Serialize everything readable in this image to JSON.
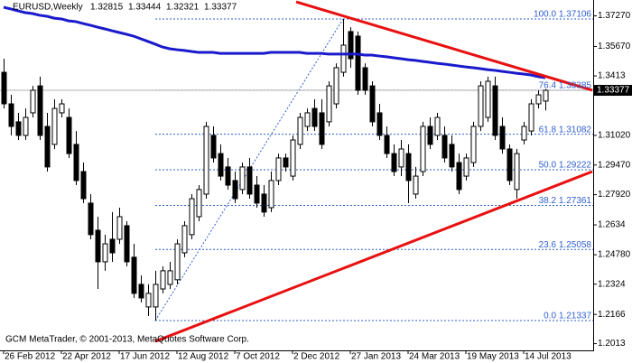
{
  "header": {
    "symbol": "EURUSD,Weekly"
  },
  "footer": "GCM MetaTrader, © 2001-2013, MetaQuotes Software Corp.",
  "chart_data": {
    "type": "candlestick",
    "categories": [
      "26 Feb 2012",
      null,
      null,
      null,
      null,
      null,
      null,
      null,
      "22 Apr 2012",
      null,
      null,
      null,
      null,
      null,
      null,
      null,
      "17 Jun 2012",
      null,
      null,
      null,
      null,
      null,
      null,
      null,
      "12 Aug 2012",
      null,
      null,
      null,
      null,
      null,
      null,
      null,
      "7 Oct 2012",
      null,
      null,
      null,
      null,
      null,
      null,
      null,
      "2 Dec 2012",
      null,
      null,
      null,
      null,
      null,
      null,
      null,
      "27 Jan 2013",
      null,
      null,
      null,
      null,
      null,
      null,
      null,
      "24 Mar 2013",
      null,
      null,
      null,
      null,
      null,
      null,
      null,
      "19 May 2013",
      null,
      null,
      null,
      null,
      null,
      null,
      null,
      "14 Jul 2013",
      null,
      null,
      null
    ],
    "open": [
      1.3432,
      1.3267,
      1.3173,
      1.3102,
      1.322,
      1.3361,
      1.3149,
      1.3055,
      1.322,
      1.3196,
      1.3055,
      1.2913,
      1.2748,
      1.2606,
      1.2441,
      1.2559,
      1.2559,
      1.263,
      1.2465,
      1.2323,
      1.2205,
      1.2205,
      1.2299,
      1.2323,
      1.2347,
      1.2488,
      1.2583,
      1.2677,
      1.2795,
      1.3102,
      1.3007,
      1.2937,
      1.2866,
      1.2819,
      1.2937,
      1.2842,
      1.2795,
      1.2724,
      1.2866,
      1.2984,
      1.2889,
      1.3055,
      1.3149,
      1.3243,
      1.322,
      1.3173,
      1.3267,
      1.3432,
      1.3645,
      1.3621,
      1.3456,
      1.3361,
      1.322,
      1.3102,
      1.3007,
      1.2937,
      1.3007,
      1.2795,
      1.2913,
      1.3149,
      1.3102,
      1.3102,
      1.3055,
      1.296,
      1.2889,
      1.296,
      1.3149,
      1.3196,
      1.3361,
      1.3149,
      1.3031,
      1.2819,
      1.3078,
      1.3125,
      1.3267,
      1.32815
    ],
    "high": [
      1.3503,
      1.3314,
      1.322,
      1.3243,
      1.3361,
      1.3409,
      1.322,
      1.3291,
      1.3291,
      1.3243,
      1.3125,
      1.296,
      1.2795,
      1.2677,
      1.2583,
      1.2701,
      1.2724,
      1.2653,
      1.2535,
      1.237,
      1.2323,
      1.2394,
      1.2417,
      1.2441,
      1.2559,
      1.2653,
      1.2795,
      1.2842,
      1.3173,
      1.3149,
      1.3055,
      1.2984,
      1.2913,
      1.296,
      1.2984,
      1.2889,
      1.2842,
      1.2913,
      1.3007,
      1.3007,
      1.3102,
      1.322,
      1.3243,
      1.3291,
      1.3291,
      1.3385,
      1.3479,
      1.37106,
      1.3668,
      1.3645,
      1.3479,
      1.3385,
      1.3267,
      1.3149,
      1.3055,
      1.3078,
      1.3055,
      1.2937,
      1.3173,
      1.3196,
      1.322,
      1.3149,
      1.3102,
      1.3007,
      1.3007,
      1.3173,
      1.3385,
      1.3409,
      1.3409,
      1.3196,
      1.3055,
      1.3031,
      1.3173,
      1.3291,
      1.3338,
      1.33444
    ],
    "low": [
      1.3243,
      1.3102,
      1.3078,
      1.3078,
      1.3196,
      1.3078,
      1.2913,
      1.3031,
      1.3196,
      1.2984,
      1.2842,
      1.2748,
      1.2559,
      1.2299,
      1.2394,
      1.2441,
      1.2535,
      1.2417,
      1.2252,
      1.2229,
      1.2158,
      1.21337,
      1.2276,
      1.2299,
      1.2323,
      1.2465,
      1.2559,
      1.2653,
      1.2771,
      1.296,
      1.2866,
      1.2819,
      1.2748,
      1.2795,
      1.2771,
      1.2724,
      1.2677,
      1.2701,
      1.2842,
      1.2913,
      1.2866,
      1.3031,
      1.3125,
      1.3125,
      1.3031,
      1.3149,
      1.3243,
      1.3409,
      1.3456,
      1.3314,
      1.3314,
      1.3149,
      1.3078,
      1.2984,
      1.2889,
      1.2889,
      1.2748,
      1.2771,
      1.2889,
      1.3031,
      1.3078,
      1.296,
      1.2913,
      1.2795,
      1.2866,
      1.2937,
      1.3125,
      1.3173,
      1.3078,
      1.3007,
      1.2842,
      1.2771,
      1.3055,
      1.3102,
      1.3243,
      1.32321
    ],
    "close": [
      1.3267,
      1.3149,
      1.3102,
      1.3196,
      1.3338,
      1.3102,
      1.2937,
      1.3243,
      1.3267,
      1.3007,
      1.2866,
      1.2771,
      1.2583,
      1.2441,
      1.2535,
      1.2488,
      1.2677,
      1.2441,
      1.2276,
      1.2252,
      1.2276,
      1.2323,
      1.2394,
      1.2394,
      1.2535,
      1.263,
      1.2771,
      1.2819,
      1.3149,
      1.2984,
      1.2889,
      1.2842,
      1.2771,
      1.2937,
      1.2795,
      1.2748,
      1.2701,
      1.2866,
      1.2984,
      1.2937,
      1.3078,
      1.3196,
      1.322,
      1.3149,
      1.3055,
      1.3361,
      1.3456,
      1.3574,
      1.3503,
      1.3338,
      1.3338,
      1.3173,
      1.3102,
      1.3007,
      1.2913,
      1.3031,
      1.2866,
      1.2889,
      1.3149,
      1.3055,
      1.3196,
      1.2984,
      1.2937,
      1.2819,
      1.2984,
      1.3149,
      1.3361,
      1.3385,
      1.3102,
      1.3031,
      1.2866,
      1.3007,
      1.3149,
      1.3267,
      1.3314,
      1.33377
    ],
    "moving_average": {
      "color": "#1a1acc",
      "values": [
        1.3772,
        1.3763,
        1.3753,
        1.3744,
        1.3739,
        1.373,
        1.3725,
        1.3715,
        1.3711,
        1.3701,
        1.3697,
        1.3687,
        1.3678,
        1.3668,
        1.3659,
        1.3649,
        1.364,
        1.3631,
        1.3621,
        1.3607,
        1.3593,
        1.3579,
        1.3564,
        1.3555,
        1.355,
        1.3546,
        1.3541,
        1.3536,
        1.3536,
        1.3536,
        1.3531,
        1.3531,
        1.3531,
        1.3531,
        1.3531,
        1.3531,
        1.3531,
        1.3536,
        1.3536,
        1.3536,
        1.3536,
        1.3536,
        1.3531,
        1.3531,
        1.3531,
        1.3527,
        1.3527,
        1.3527,
        1.3527,
        1.3527,
        1.3522,
        1.3522,
        1.3517,
        1.3513,
        1.3508,
        1.3503,
        1.3498,
        1.3494,
        1.3489,
        1.3484,
        1.3479,
        1.3475,
        1.347,
        1.3465,
        1.346,
        1.3456,
        1.3451,
        1.3446,
        1.3442,
        1.3437,
        1.3432,
        1.3427,
        1.3423,
        1.3418,
        1.3409,
        1.3404
      ]
    },
    "trendlines": [
      {
        "color": "#e81010",
        "points": [
          [
            40.5,
            1.38
          ],
          [
            81.5,
            1.3338
          ]
        ]
      },
      {
        "color": "#e81010",
        "points": [
          [
            21,
            1.2025
          ],
          [
            81.5,
            1.2913
          ]
        ]
      }
    ],
    "fibonacci": {
      "color": "#2f5fcf",
      "from": 21,
      "to": 47,
      "levels": [
        {
          "value": 1.37106,
          "label": "100.0 1.37106"
        },
        {
          "value": 1.33385,
          "label": "76.4 1.33385"
        },
        {
          "value": 1.31082,
          "label": "61.8 1.31082"
        },
        {
          "value": 1.29222,
          "label": "50.0 1.29222"
        },
        {
          "value": 1.27361,
          "label": "38.2 1.27361"
        },
        {
          "value": 1.25058,
          "label": "23.6 1.25058"
        },
        {
          "value": 1.21337,
          "label": "0.0 1.21337"
        }
      ]
    },
    "ylim": [
      1.1978,
      1.381
    ],
    "yticks": [
      {
        "value": 1.3727,
        "label": "1.37270"
      },
      {
        "value": 1.3567,
        "label": "1.35670"
      },
      1.3413,
      {
        "value": 1.3102,
        "label": "1.31020"
      },
      {
        "value": 1.2947,
        "label": "1.29470"
      },
      {
        "value": 1.2792,
        "label": "1.27920"
      },
      1.2634,
      {
        "value": 1.2478,
        "label": "1.24780"
      },
      1.2324,
      1.2166,
      1.2013
    ]
  }
}
